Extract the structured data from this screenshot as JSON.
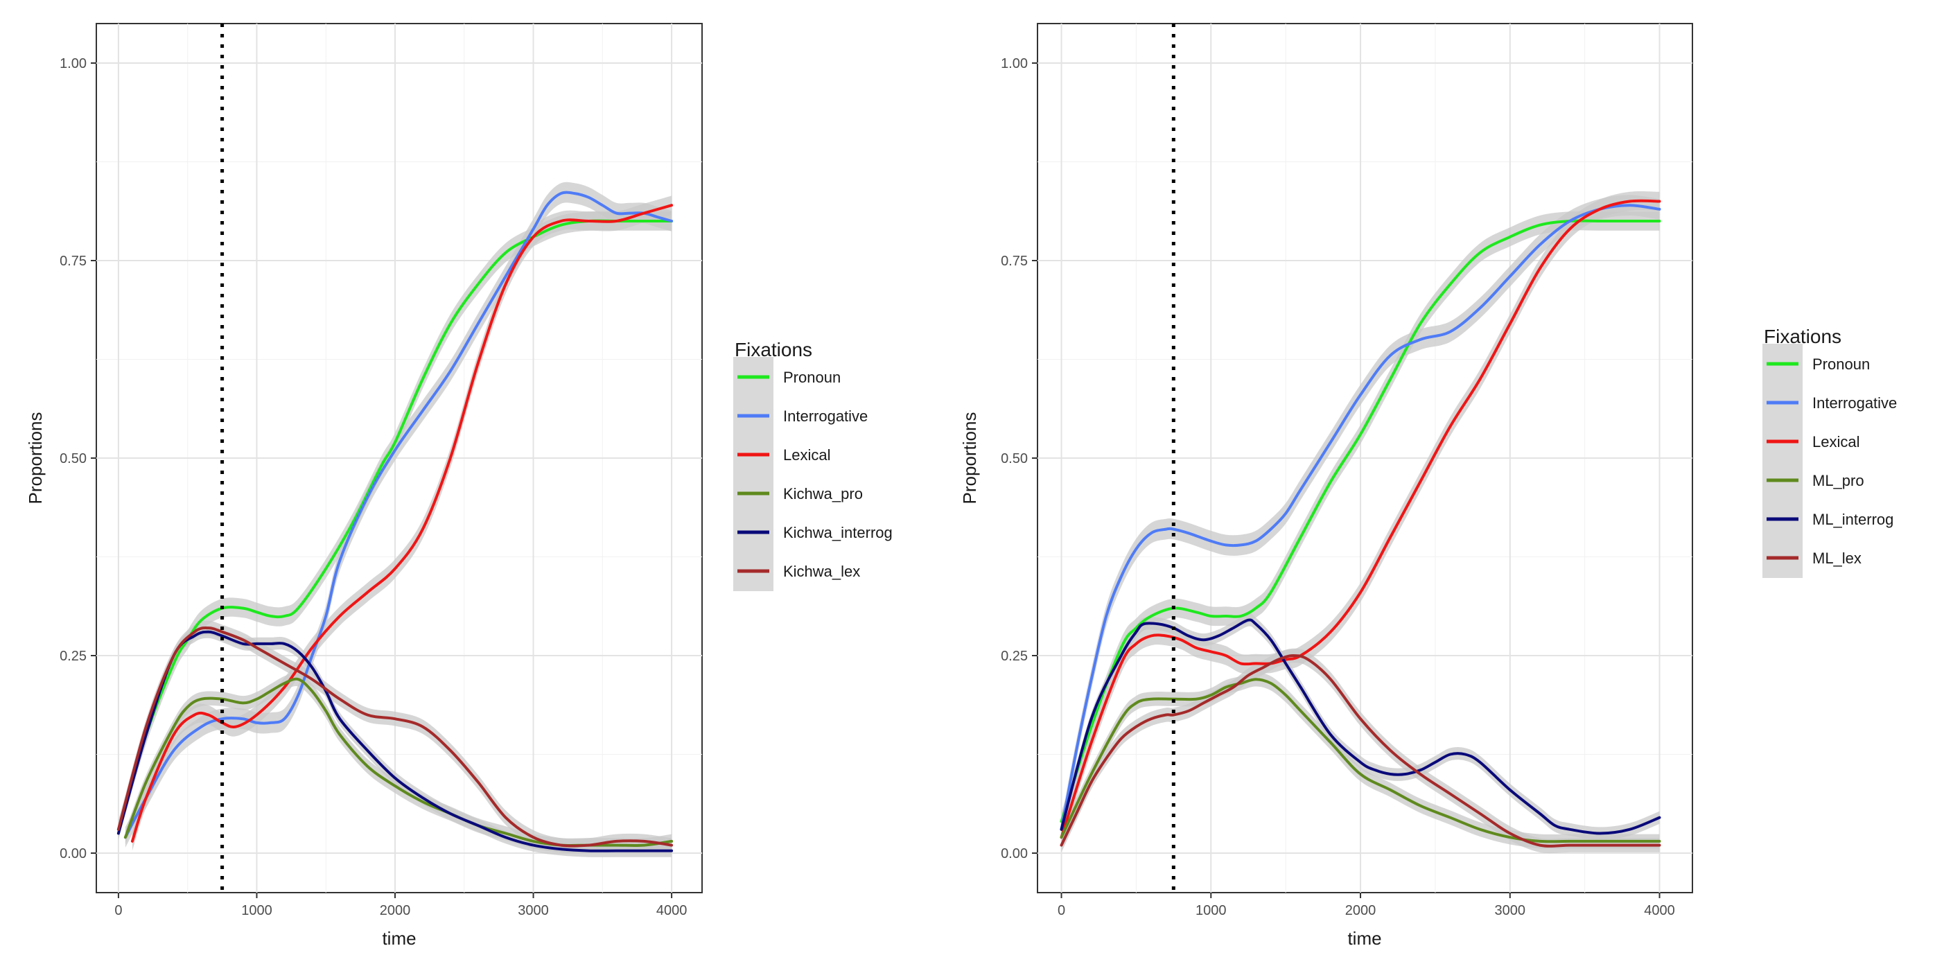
{
  "colors": {
    "Pronoun": "#1ee81e",
    "Interrogative": "#4f7cf6",
    "Lexical": "#f01515",
    "pro": "#5f8a1e",
    "interrog": "#0a0a7a",
    "lex": "#a52a2a",
    "ribbon": "#c8c8c8",
    "vline": "#000000"
  },
  "chart_data": [
    {
      "type": "line",
      "xlabel": "time",
      "ylabel": "Proportions",
      "xlim": [
        -160,
        4220
      ],
      "ylim": [
        -0.05,
        1.05
      ],
      "x_ticks": [
        0,
        1000,
        2000,
        3000,
        4000
      ],
      "x_tick_labels": [
        "0",
        "1000",
        "2000",
        "3000",
        "4000"
      ],
      "y_ticks": [
        0,
        0.25,
        0.5,
        0.75,
        1.0
      ],
      "y_tick_labels": [
        "0.00",
        "0.25",
        "0.50",
        "0.75",
        "1.00"
      ],
      "vline_x": 750,
      "legend_title": "Fixations",
      "legend_position": "right",
      "series": [
        {
          "name": "Pronoun",
          "color_key": "Pronoun",
          "x": [
            0,
            200,
            400,
            500,
            600,
            750,
            900,
            1000,
            1100,
            1200,
            1300,
            1500,
            1700,
            1900,
            2000,
            2200,
            2400,
            2600,
            2800,
            3000,
            3200,
            3400,
            3600,
            3800,
            4000
          ],
          "y": [
            0.03,
            0.15,
            0.24,
            0.27,
            0.295,
            0.31,
            0.31,
            0.305,
            0.3,
            0.3,
            0.31,
            0.36,
            0.42,
            0.49,
            0.52,
            0.6,
            0.67,
            0.72,
            0.76,
            0.78,
            0.795,
            0.8,
            0.8,
            0.8,
            0.8
          ]
        },
        {
          "name": "Interrogative",
          "color_key": "Interrogative",
          "x": [
            50,
            200,
            400,
            600,
            750,
            900,
            1000,
            1100,
            1200,
            1300,
            1400,
            1500,
            1600,
            1800,
            2000,
            2200,
            2400,
            2600,
            2800,
            3000,
            3100,
            3200,
            3300,
            3400,
            3500,
            3600,
            3700,
            3800,
            3900,
            4000
          ],
          "y": [
            0.02,
            0.07,
            0.13,
            0.16,
            0.17,
            0.17,
            0.165,
            0.165,
            0.17,
            0.2,
            0.25,
            0.3,
            0.37,
            0.45,
            0.51,
            0.56,
            0.61,
            0.67,
            0.73,
            0.79,
            0.82,
            0.835,
            0.835,
            0.83,
            0.82,
            0.81,
            0.81,
            0.81,
            0.805,
            0.8
          ]
        },
        {
          "name": "Lexical",
          "color_key": "Lexical",
          "x": [
            100,
            200,
            400,
            550,
            650,
            750,
            850,
            1000,
            1200,
            1400,
            1600,
            1800,
            2000,
            2200,
            2400,
            2600,
            2800,
            3000,
            3200,
            3400,
            3600,
            3800,
            4000
          ],
          "y": [
            0.015,
            0.07,
            0.15,
            0.175,
            0.175,
            0.165,
            0.16,
            0.175,
            0.21,
            0.26,
            0.3,
            0.33,
            0.36,
            0.41,
            0.5,
            0.62,
            0.72,
            0.78,
            0.8,
            0.8,
            0.8,
            0.81,
            0.82
          ]
        },
        {
          "name": "Kichwa_pro",
          "color_key": "pro",
          "x": [
            50,
            200,
            400,
            500,
            600,
            750,
            900,
            1000,
            1100,
            1200,
            1300,
            1400,
            1500,
            1600,
            1800,
            2000,
            2200,
            2400,
            2600,
            2800,
            3000,
            3200,
            3400,
            3600,
            3800,
            4000
          ],
          "y": [
            0.02,
            0.09,
            0.16,
            0.185,
            0.195,
            0.195,
            0.19,
            0.195,
            0.205,
            0.215,
            0.22,
            0.205,
            0.18,
            0.15,
            0.11,
            0.085,
            0.065,
            0.05,
            0.035,
            0.025,
            0.015,
            0.01,
            0.01,
            0.01,
            0.01,
            0.015
          ]
        },
        {
          "name": "Kichwa_interrog",
          "color_key": "interrog",
          "x": [
            0,
            200,
            400,
            550,
            650,
            750,
            900,
            1000,
            1100,
            1200,
            1300,
            1400,
            1500,
            1600,
            1800,
            2000,
            2200,
            2400,
            2600,
            2800,
            3000,
            3200,
            3400,
            3600,
            3800,
            4000
          ],
          "y": [
            0.025,
            0.15,
            0.25,
            0.275,
            0.28,
            0.275,
            0.265,
            0.265,
            0.265,
            0.265,
            0.255,
            0.235,
            0.205,
            0.17,
            0.13,
            0.095,
            0.07,
            0.05,
            0.035,
            0.02,
            0.01,
            0.005,
            0.003,
            0.003,
            0.003,
            0.003
          ]
        },
        {
          "name": "Kichwa_lex",
          "color_key": "lex",
          "x": [
            0,
            200,
            400,
            550,
            650,
            750,
            900,
            1000,
            1200,
            1400,
            1600,
            1800,
            2000,
            2200,
            2400,
            2600,
            2800,
            3000,
            3200,
            3400,
            3600,
            3800,
            4000
          ],
          "y": [
            0.03,
            0.16,
            0.25,
            0.28,
            0.285,
            0.28,
            0.27,
            0.26,
            0.24,
            0.22,
            0.195,
            0.175,
            0.17,
            0.16,
            0.13,
            0.09,
            0.045,
            0.02,
            0.01,
            0.01,
            0.015,
            0.015,
            0.01
          ]
        }
      ]
    },
    {
      "type": "line",
      "xlabel": "time",
      "ylabel": "Proportions",
      "xlim": [
        -160,
        4220
      ],
      "ylim": [
        -0.05,
        1.05
      ],
      "x_ticks": [
        0,
        1000,
        2000,
        3000,
        4000
      ],
      "x_tick_labels": [
        "0",
        "1000",
        "2000",
        "3000",
        "4000"
      ],
      "y_ticks": [
        0,
        0.25,
        0.5,
        0.75,
        1.0
      ],
      "y_tick_labels": [
        "0.00",
        "0.25",
        "0.50",
        "0.75",
        "1.00"
      ],
      "vline_x": 750,
      "legend_title": "Fixations",
      "legend_position": "right",
      "series": [
        {
          "name": "Pronoun",
          "color_key": "Pronoun",
          "x": [
            0,
            200,
            400,
            500,
            600,
            750,
            900,
            1000,
            1100,
            1200,
            1300,
            1400,
            1600,
            1800,
            2000,
            2200,
            2400,
            2600,
            2800,
            3000,
            3200,
            3400,
            3600,
            3800,
            4000
          ],
          "y": [
            0.04,
            0.16,
            0.26,
            0.285,
            0.3,
            0.31,
            0.305,
            0.3,
            0.3,
            0.3,
            0.31,
            0.33,
            0.4,
            0.47,
            0.53,
            0.6,
            0.67,
            0.72,
            0.76,
            0.78,
            0.795,
            0.8,
            0.8,
            0.8,
            0.8
          ]
        },
        {
          "name": "Interrogative",
          "color_key": "Interrogative",
          "x": [
            0,
            100,
            200,
            300,
            400,
            500,
            600,
            700,
            750,
            850,
            1000,
            1100,
            1200,
            1300,
            1400,
            1500,
            1600,
            1800,
            2000,
            2200,
            2400,
            2600,
            2800,
            3000,
            3200,
            3400,
            3600,
            3800,
            4000
          ],
          "y": [
            0.03,
            0.13,
            0.22,
            0.3,
            0.35,
            0.385,
            0.405,
            0.41,
            0.41,
            0.405,
            0.395,
            0.39,
            0.39,
            0.395,
            0.41,
            0.43,
            0.46,
            0.52,
            0.58,
            0.63,
            0.65,
            0.66,
            0.69,
            0.73,
            0.77,
            0.8,
            0.815,
            0.82,
            0.815
          ]
        },
        {
          "name": "Lexical",
          "color_key": "Lexical",
          "x": [
            0,
            200,
            400,
            500,
            600,
            700,
            800,
            900,
            1000,
            1100,
            1200,
            1300,
            1400,
            1500,
            1600,
            1800,
            2000,
            2200,
            2400,
            2600,
            2800,
            3000,
            3200,
            3400,
            3600,
            3800,
            4000
          ],
          "y": [
            0.02,
            0.14,
            0.24,
            0.265,
            0.275,
            0.275,
            0.27,
            0.26,
            0.255,
            0.25,
            0.24,
            0.24,
            0.24,
            0.245,
            0.25,
            0.28,
            0.33,
            0.4,
            0.47,
            0.54,
            0.6,
            0.67,
            0.74,
            0.79,
            0.815,
            0.825,
            0.825
          ]
        },
        {
          "name": "ML_pro",
          "color_key": "pro",
          "x": [
            0,
            200,
            400,
            500,
            600,
            750,
            900,
            1000,
            1100,
            1200,
            1300,
            1400,
            1500,
            1600,
            1800,
            2000,
            2200,
            2400,
            2600,
            2800,
            3000,
            3200,
            3400,
            3600,
            3800,
            4000
          ],
          "y": [
            0.02,
            0.1,
            0.17,
            0.19,
            0.195,
            0.195,
            0.195,
            0.2,
            0.21,
            0.215,
            0.22,
            0.215,
            0.2,
            0.18,
            0.14,
            0.1,
            0.08,
            0.06,
            0.045,
            0.03,
            0.02,
            0.015,
            0.015,
            0.015,
            0.015,
            0.015
          ]
        },
        {
          "name": "ML_interrog",
          "color_key": "interrog",
          "x": [
            0,
            200,
            400,
            500,
            550,
            650,
            750,
            850,
            950,
            1050,
            1150,
            1250,
            1300,
            1400,
            1500,
            1600,
            1800,
            2000,
            2100,
            2200,
            2300,
            2400,
            2500,
            2600,
            2700,
            2800,
            3000,
            3200,
            3300,
            3400,
            3600,
            3800,
            4000
          ],
          "y": [
            0.03,
            0.17,
            0.25,
            0.28,
            0.29,
            0.29,
            0.285,
            0.275,
            0.27,
            0.275,
            0.285,
            0.295,
            0.29,
            0.27,
            0.24,
            0.21,
            0.15,
            0.115,
            0.105,
            0.1,
            0.1,
            0.105,
            0.115,
            0.125,
            0.125,
            0.115,
            0.08,
            0.05,
            0.035,
            0.03,
            0.025,
            0.03,
            0.045
          ]
        },
        {
          "name": "ML_lex",
          "color_key": "lex",
          "x": [
            0,
            100,
            200,
            300,
            400,
            500,
            600,
            700,
            750,
            850,
            950,
            1050,
            1150,
            1250,
            1350,
            1450,
            1550,
            1650,
            1800,
            2000,
            2200,
            2400,
            2600,
            2800,
            3000,
            3200,
            3400,
            3600,
            3800,
            4000
          ],
          "y": [
            0.01,
            0.05,
            0.09,
            0.12,
            0.145,
            0.16,
            0.17,
            0.175,
            0.175,
            0.18,
            0.19,
            0.2,
            0.21,
            0.225,
            0.235,
            0.245,
            0.25,
            0.245,
            0.22,
            0.17,
            0.13,
            0.1,
            0.075,
            0.05,
            0.025,
            0.01,
            0.01,
            0.01,
            0.01,
            0.01
          ]
        }
      ]
    }
  ]
}
